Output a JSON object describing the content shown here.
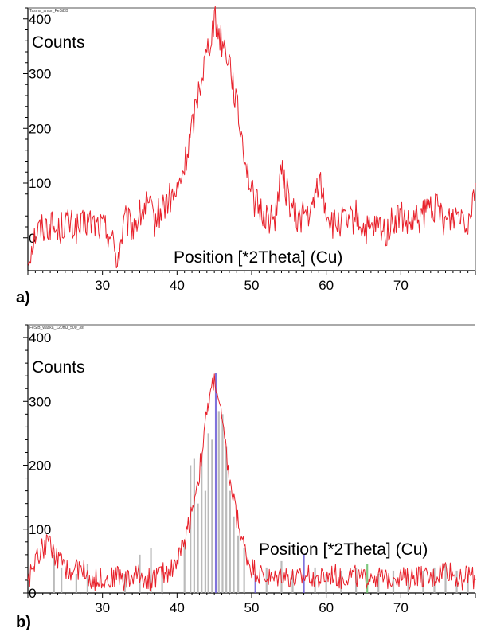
{
  "chart_data": [
    {
      "type": "line",
      "panel_label": "a)",
      "title": "Tasma_amor_FeSiBB",
      "xlabel": "Position [*2Theta] (Cu)",
      "ylabel": "Counts",
      "xlim": [
        20,
        80
      ],
      "ylim": [
        -60,
        420
      ],
      "xticks": [
        30,
        40,
        50,
        60,
        70
      ],
      "yticks": [
        0,
        100,
        200,
        300,
        400
      ],
      "xtick_labels": [
        "30",
        "40",
        "50",
        "60",
        "70"
      ],
      "ytick_labels": [
        "0",
        "100",
        "200",
        "300",
        "400"
      ],
      "line_color": "#e8202a",
      "series": [
        {
          "x": [
            20,
            21,
            22,
            23,
            24,
            25,
            26,
            27,
            28,
            29,
            30,
            31,
            32,
            33,
            34,
            35,
            36,
            37,
            38,
            39,
            40,
            41,
            42,
            43,
            44,
            45,
            46,
            47,
            48,
            49,
            50,
            51,
            52,
            53,
            54,
            55,
            56,
            57,
            58,
            59,
            60,
            61,
            62,
            63,
            64,
            65,
            66,
            67,
            68,
            69,
            70,
            71,
            72,
            73,
            74,
            75,
            76,
            77,
            78,
            79,
            80
          ],
          "y": [
            -40,
            10,
            20,
            25,
            10,
            30,
            20,
            15,
            30,
            25,
            20,
            10,
            -40,
            30,
            20,
            40,
            60,
            30,
            55,
            70,
            80,
            130,
            200,
            280,
            340,
            400,
            360,
            330,
            240,
            160,
            80,
            50,
            40,
            30,
            120,
            70,
            30,
            45,
            40,
            110,
            50,
            20,
            30,
            25,
            40,
            15,
            10,
            20,
            10,
            30,
            40,
            20,
            30,
            40,
            60,
            50,
            30,
            40,
            50,
            30,
            100
          ]
        }
      ]
    },
    {
      "type": "line",
      "panel_label": "b)",
      "title": "FeSiB_waska_120mJ_500_3st",
      "xlabel": "Position [*2Theta] (Cu)",
      "ylabel": "Counts",
      "xlim": [
        20,
        80
      ],
      "ylim": [
        0,
        420
      ],
      "xticks": [
        30,
        40,
        50,
        60,
        70
      ],
      "yticks": [
        0,
        100,
        200,
        300,
        400
      ],
      "xtick_labels": [
        "30",
        "40",
        "50",
        "60",
        "70"
      ],
      "ytick_labels": [
        "0",
        "100",
        "200",
        "300",
        "400"
      ],
      "line_color": "#e8202a",
      "series": [
        {
          "x": [
            20,
            21,
            22,
            23,
            24,
            25,
            26,
            27,
            28,
            29,
            30,
            31,
            32,
            33,
            34,
            35,
            36,
            37,
            38,
            39,
            40,
            41,
            42,
            43,
            44,
            45,
            46,
            47,
            48,
            49,
            50,
            51,
            52,
            53,
            54,
            55,
            56,
            57,
            58,
            59,
            60,
            61,
            62,
            63,
            64,
            65,
            66,
            67,
            68,
            69,
            70,
            71,
            72,
            73,
            74,
            75,
            76,
            77,
            78,
            79,
            80
          ],
          "y": [
            20,
            50,
            70,
            80,
            50,
            40,
            30,
            40,
            30,
            20,
            25,
            20,
            30,
            20,
            25,
            30,
            20,
            25,
            30,
            35,
            50,
            80,
            130,
            190,
            280,
            340,
            270,
            180,
            120,
            70,
            40,
            30,
            25,
            20,
            30,
            25,
            20,
            25,
            30,
            20,
            25,
            30,
            20,
            30,
            25,
            20,
            30,
            25,
            20,
            30,
            25,
            20,
            30,
            25,
            20,
            30,
            40,
            30,
            20,
            30,
            20
          ]
        }
      ],
      "reference_lines": [
        {
          "x": 23.5,
          "height": 60,
          "color": "#b0b0b0"
        },
        {
          "x": 24.5,
          "height": 40,
          "color": "#b0b0b0"
        },
        {
          "x": 26.5,
          "height": 30,
          "color": "#b0b0b0"
        },
        {
          "x": 28,
          "height": 45,
          "color": "#b0b0b0"
        },
        {
          "x": 33,
          "height": 30,
          "color": "#b0b0b0"
        },
        {
          "x": 35,
          "height": 60,
          "color": "#b0b0b0"
        },
        {
          "x": 36.5,
          "height": 70,
          "color": "#b0b0b0"
        },
        {
          "x": 38,
          "height": 40,
          "color": "#b0b0b0"
        },
        {
          "x": 41,
          "height": 80,
          "color": "#b0b0b0"
        },
        {
          "x": 41.8,
          "height": 200,
          "color": "#b0b0b0"
        },
        {
          "x": 42.3,
          "height": 210,
          "color": "#b0b0b0"
        },
        {
          "x": 42.8,
          "height": 140,
          "color": "#b0b0b0"
        },
        {
          "x": 43.3,
          "height": 220,
          "color": "#b0b0b0"
        },
        {
          "x": 43.8,
          "height": 160,
          "color": "#b0b0b0"
        },
        {
          "x": 44.2,
          "height": 250,
          "color": "#b0b0b0"
        },
        {
          "x": 44.7,
          "height": 240,
          "color": "#b0b0b0"
        },
        {
          "x": 45.2,
          "height": 345,
          "color": "#6b5bd6"
        },
        {
          "x": 45.6,
          "height": 285,
          "color": "#b0b0b0"
        },
        {
          "x": 46.1,
          "height": 280,
          "color": "#b0b0b0"
        },
        {
          "x": 46.6,
          "height": 230,
          "color": "#b0b0b0"
        },
        {
          "x": 47.1,
          "height": 160,
          "color": "#b0b0b0"
        },
        {
          "x": 47.6,
          "height": 120,
          "color": "#b0b0b0"
        },
        {
          "x": 48.2,
          "height": 90,
          "color": "#b0b0b0"
        },
        {
          "x": 49,
          "height": 70,
          "color": "#b0b0b0"
        },
        {
          "x": 50.5,
          "height": 30,
          "color": "#6b5bd6"
        },
        {
          "x": 52,
          "height": 40,
          "color": "#b0b0b0"
        },
        {
          "x": 54,
          "height": 50,
          "color": "#b0b0b0"
        },
        {
          "x": 55.5,
          "height": 35,
          "color": "#b0b0b0"
        },
        {
          "x": 57,
          "height": 60,
          "color": "#6b5bd6"
        },
        {
          "x": 58.5,
          "height": 40,
          "color": "#b0b0b0"
        },
        {
          "x": 60,
          "height": 30,
          "color": "#b0b0b0"
        },
        {
          "x": 62,
          "height": 35,
          "color": "#b0b0b0"
        },
        {
          "x": 64,
          "height": 40,
          "color": "#b0b0b0"
        },
        {
          "x": 65.5,
          "height": 45,
          "color": "#6bbf6b"
        },
        {
          "x": 67,
          "height": 30,
          "color": "#b0b0b0"
        },
        {
          "x": 69,
          "height": 35,
          "color": "#b0b0b0"
        },
        {
          "x": 71,
          "height": 30,
          "color": "#b0b0b0"
        },
        {
          "x": 73,
          "height": 35,
          "color": "#b0b0b0"
        },
        {
          "x": 74.5,
          "height": 40,
          "color": "#b0b0b0"
        },
        {
          "x": 76,
          "height": 45,
          "color": "#b0b0b0"
        },
        {
          "x": 77.5,
          "height": 35,
          "color": "#b0b0b0"
        },
        {
          "x": 79,
          "height": 30,
          "color": "#b0b0b0"
        }
      ]
    }
  ]
}
